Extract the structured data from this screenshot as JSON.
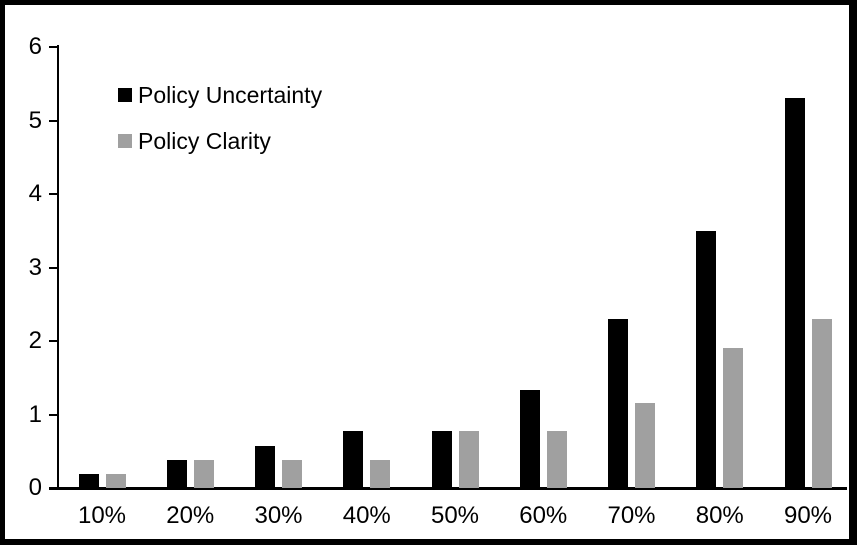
{
  "chart_data": {
    "type": "bar",
    "title": "",
    "xlabel": "",
    "ylabel": "",
    "categories": [
      "10%",
      "20%",
      "30%",
      "40%",
      "50%",
      "60%",
      "70%",
      "80%",
      "90%"
    ],
    "series": [
      {
        "name": "Policy Uncertainty",
        "color": "#000000",
        "values": [
          0.19,
          0.38,
          0.57,
          0.77,
          0.77,
          1.33,
          2.3,
          3.5,
          5.3
        ]
      },
      {
        "name": "Policy Clarity",
        "color": "#a0a0a0",
        "values": [
          0.19,
          0.38,
          0.38,
          0.38,
          0.77,
          0.77,
          1.15,
          1.9,
          2.3
        ]
      }
    ],
    "ylim": [
      0,
      6
    ],
    "yticks": [
      0,
      1,
      2,
      3,
      4,
      5,
      6
    ],
    "grid": false,
    "legend_position": "top-left",
    "frame_color": "#000000",
    "background_color": "#ffffff"
  }
}
